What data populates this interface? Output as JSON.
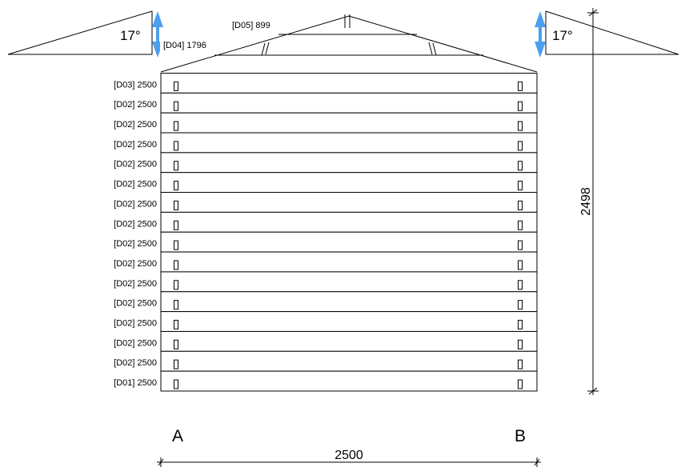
{
  "drawing": {
    "rows": [
      {
        "code": "[D03]",
        "length": "2500"
      },
      {
        "code": "[D02]",
        "length": "2500"
      },
      {
        "code": "[D02]",
        "length": "2500"
      },
      {
        "code": "[D02]",
        "length": "2500"
      },
      {
        "code": "[D02]",
        "length": "2500"
      },
      {
        "code": "[D02]",
        "length": "2500"
      },
      {
        "code": "[D02]",
        "length": "2500"
      },
      {
        "code": "[D02]",
        "length": "2500"
      },
      {
        "code": "[D02]",
        "length": "2500"
      },
      {
        "code": "[D02]",
        "length": "2500"
      },
      {
        "code": "[D02]",
        "length": "2500"
      },
      {
        "code": "[D02]",
        "length": "2500"
      },
      {
        "code": "[D02]",
        "length": "2500"
      },
      {
        "code": "[D02]",
        "length": "2500"
      },
      {
        "code": "[D02]",
        "length": "2500"
      },
      {
        "code": "[D01]",
        "length": "2500"
      }
    ],
    "gable_labels": {
      "d05": "[D05] 899",
      "d04": "[D04] 1796"
    },
    "angles": {
      "left": "17°",
      "right": "17°"
    },
    "dimensions": {
      "height": "2498",
      "width": "2500"
    },
    "corners": {
      "a": "A",
      "b": "B"
    },
    "colors": {
      "arrow": "#4a9ff0",
      "line": "#000000"
    }
  }
}
